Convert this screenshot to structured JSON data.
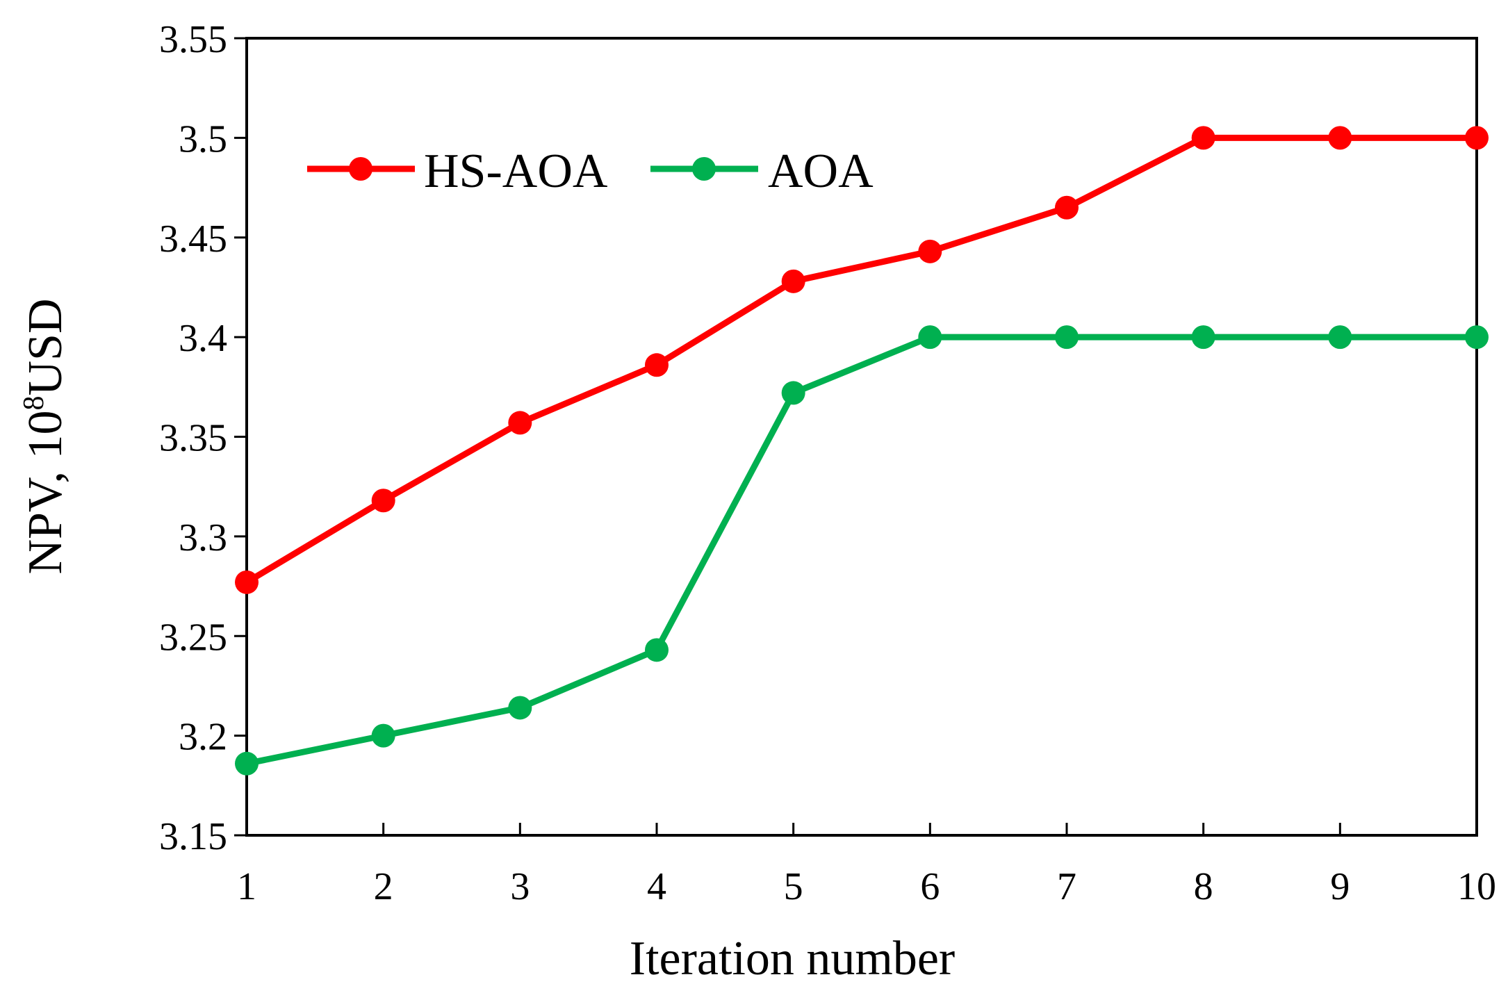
{
  "chart_data": {
    "type": "line",
    "x": [
      1,
      2,
      3,
      4,
      5,
      6,
      7,
      8,
      9,
      10
    ],
    "x_ticks": [
      "1",
      "2",
      "3",
      "4",
      "5",
      "6",
      "7",
      "8",
      "9",
      "10"
    ],
    "y_ticks": [
      "3.15",
      "3.2",
      "3.25",
      "3.3",
      "3.35",
      "3.4",
      "3.45",
      "3.5",
      "3.55"
    ],
    "xlim": [
      1,
      10
    ],
    "ylim": [
      3.15,
      3.55
    ],
    "xlabel": "Iteration number",
    "ylabel": {
      "prefix": "NPV, 10",
      "superscript": "8",
      "suffix": "USD"
    },
    "grid": false,
    "legend_position": "top-left",
    "series": [
      {
        "name": "HS-AOA",
        "color": "#ff0000",
        "values": [
          3.277,
          3.318,
          3.357,
          3.386,
          3.428,
          3.443,
          3.465,
          3.5,
          3.5,
          3.5
        ]
      },
      {
        "name": "AOA",
        "color": "#00b050",
        "values": [
          3.186,
          3.2,
          3.214,
          3.243,
          3.372,
          3.4,
          3.4,
          3.4,
          3.4,
          3.4
        ]
      }
    ]
  }
}
